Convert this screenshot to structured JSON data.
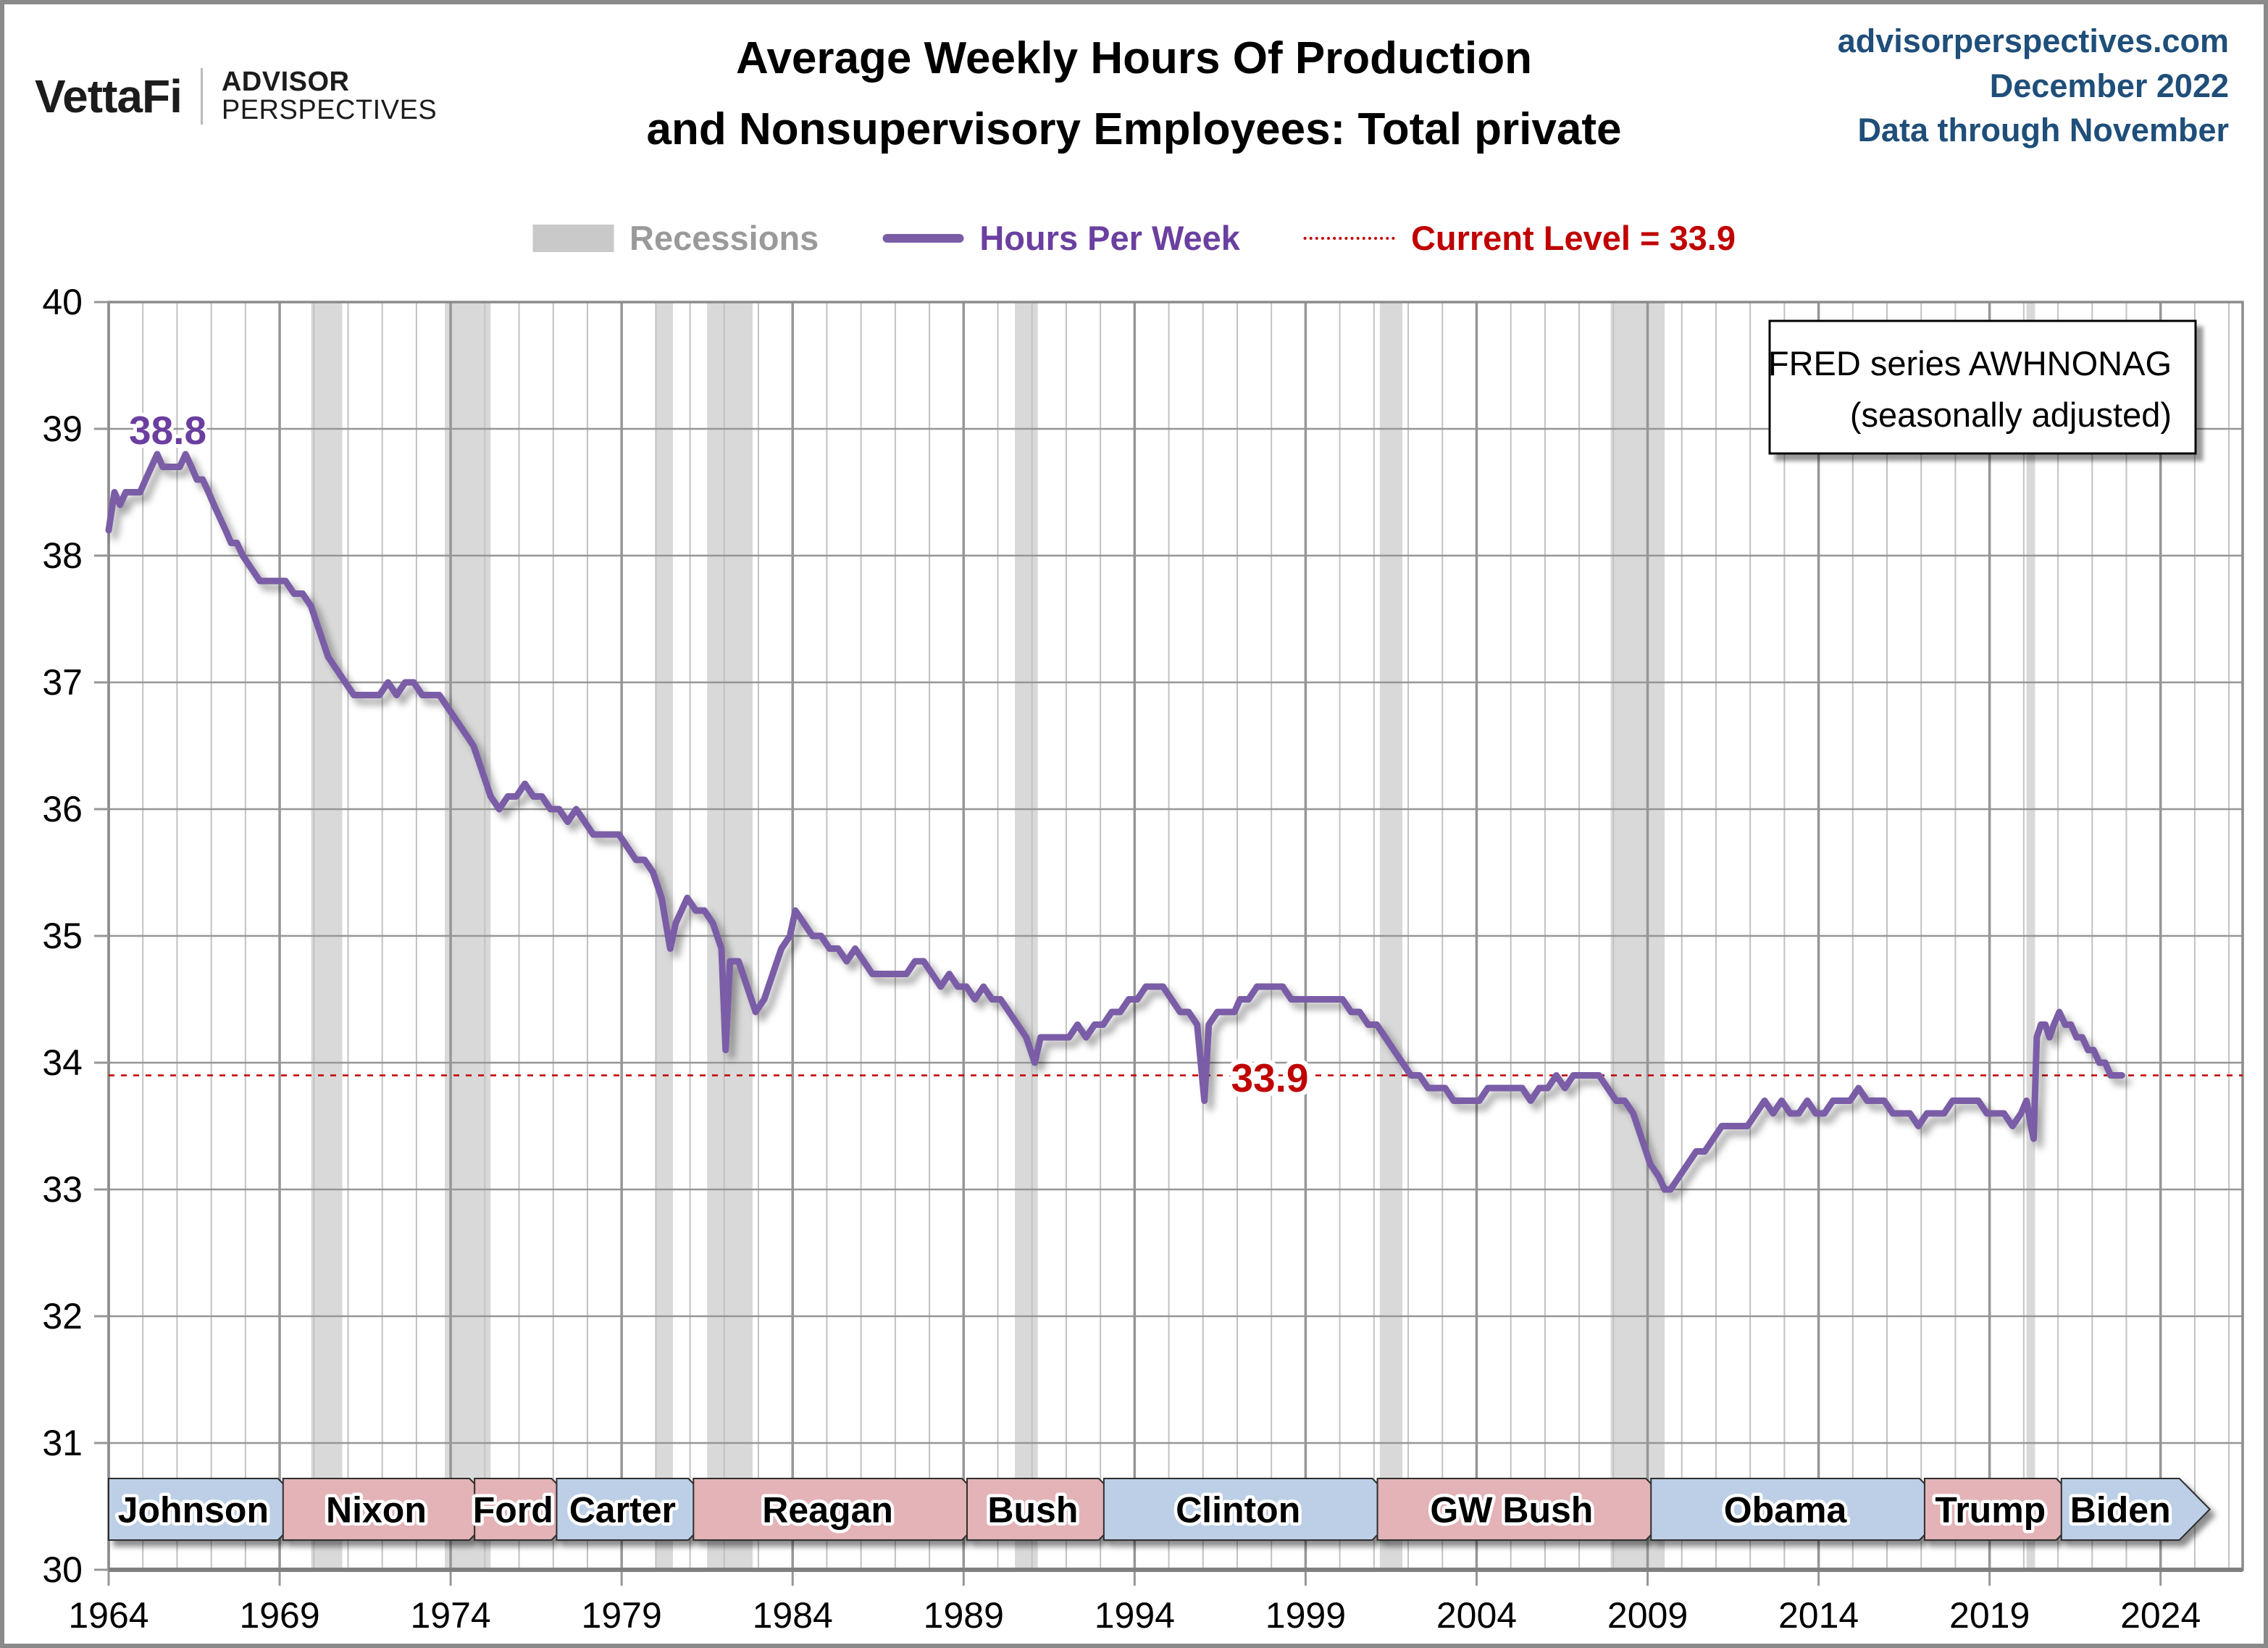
{
  "header": {
    "brand": {
      "name": "VettaFi",
      "sub_top": "ADVISOR",
      "sub_bottom": "PERSPECTIVES"
    },
    "title_line1": "Average Weekly Hours Of Production",
    "title_line2": "and Nonsupervisory Employees: Total private",
    "source_site": "advisorperspectives.com",
    "source_date": "December 2022",
    "source_note": "Data through November"
  },
  "legend": {
    "recessions": "Recessions",
    "series": "Hours Per Week",
    "current": "Current Level = 33.9"
  },
  "annotations": {
    "peak_label": "38.8",
    "current_label": "33.9",
    "fred_line1": "FRED series AWHNONAG",
    "fred_line2": "(seasonally adjusted)"
  },
  "colors": {
    "line": "#7a5da6",
    "purple_text": "#6b3fa0",
    "red": "#c00000",
    "recession": "#d9d9d9",
    "grid_minor": "#c2c2c2",
    "grid_major": "#969696",
    "border": "#8c8c8c",
    "axis": "#7f7f7f",
    "dem": "#bccfe6",
    "rep": "#e3b3b7",
    "banner_border": "#2f2f2f",
    "header_blue": "#1f4e79"
  },
  "chart_data": {
    "type": "line",
    "title": "Average Weekly Hours Of Production and Nonsupervisory Employees: Total private",
    "xlabel": "",
    "ylabel": "Hours Per Week",
    "x_range": [
      1964,
      2026.4
    ],
    "y_range": [
      30,
      40
    ],
    "x_ticks": [
      1964,
      1969,
      1974,
      1979,
      1984,
      1989,
      1994,
      1999,
      2004,
      2009,
      2014,
      2019,
      2024
    ],
    "y_ticks": [
      30,
      31,
      32,
      33,
      34,
      35,
      36,
      37,
      38,
      39,
      40
    ],
    "grid": true,
    "legend_position": "top",
    "current_level": 33.9,
    "peak_annotation": {
      "x": 1965.4,
      "value": 38.8
    },
    "current_annotation_x": 1997.9,
    "recessions": [
      [
        1969.92,
        1970.83
      ],
      [
        1973.83,
        1975.17
      ],
      [
        1980.0,
        1980.5
      ],
      [
        1981.5,
        1982.83
      ],
      [
        1990.5,
        1991.17
      ],
      [
        2001.17,
        2001.83
      ],
      [
        2007.92,
        2009.5
      ],
      [
        2020.08,
        2020.33
      ]
    ],
    "presidents": [
      {
        "name": "Johnson",
        "party": "D",
        "start": 1964.0,
        "end": 1968.95
      },
      {
        "name": "Nixon",
        "party": "R",
        "start": 1969.1,
        "end": 1974.55
      },
      {
        "name": "Ford",
        "party": "R",
        "start": 1974.7,
        "end": 1976.95
      },
      {
        "name": "Carter",
        "party": "D",
        "start": 1977.1,
        "end": 1980.95
      },
      {
        "name": "Reagan",
        "party": "R",
        "start": 1981.1,
        "end": 1988.95
      },
      {
        "name": "Bush",
        "party": "R",
        "start": 1989.1,
        "end": 1992.95
      },
      {
        "name": "Clinton",
        "party": "D",
        "start": 1993.1,
        "end": 2000.95
      },
      {
        "name": "GW Bush",
        "party": "R",
        "start": 2001.1,
        "end": 2008.95
      },
      {
        "name": "Obama",
        "party": "D",
        "start": 2009.1,
        "end": 2016.95
      },
      {
        "name": "Trump",
        "party": "R",
        "start": 2017.1,
        "end": 2020.95
      },
      {
        "name": "Biden",
        "party": "D",
        "start": 2021.1,
        "end": 2024.55
      }
    ],
    "series": [
      {
        "name": "Hours Per Week",
        "points": [
          [
            1964.0,
            38.2
          ],
          [
            1964.17,
            38.5
          ],
          [
            1964.33,
            38.4
          ],
          [
            1964.5,
            38.5
          ],
          [
            1964.75,
            38.5
          ],
          [
            1964.92,
            38.5
          ],
          [
            1965.08,
            38.6
          ],
          [
            1965.25,
            38.7
          ],
          [
            1965.42,
            38.8
          ],
          [
            1965.58,
            38.7
          ],
          [
            1965.75,
            38.7
          ],
          [
            1965.92,
            38.7
          ],
          [
            1966.08,
            38.7
          ],
          [
            1966.25,
            38.8
          ],
          [
            1966.42,
            38.7
          ],
          [
            1966.58,
            38.6
          ],
          [
            1966.75,
            38.6
          ],
          [
            1966.92,
            38.5
          ],
          [
            1967.08,
            38.4
          ],
          [
            1967.25,
            38.3
          ],
          [
            1967.42,
            38.2
          ],
          [
            1967.58,
            38.1
          ],
          [
            1967.75,
            38.1
          ],
          [
            1967.92,
            38.0
          ],
          [
            1968.17,
            37.9
          ],
          [
            1968.42,
            37.8
          ],
          [
            1968.67,
            37.8
          ],
          [
            1968.92,
            37.8
          ],
          [
            1969.17,
            37.8
          ],
          [
            1969.42,
            37.7
          ],
          [
            1969.67,
            37.7
          ],
          [
            1969.92,
            37.6
          ],
          [
            1970.17,
            37.4
          ],
          [
            1970.42,
            37.2
          ],
          [
            1970.67,
            37.1
          ],
          [
            1970.92,
            37.0
          ],
          [
            1971.17,
            36.9
          ],
          [
            1971.42,
            36.9
          ],
          [
            1971.67,
            36.9
          ],
          [
            1971.92,
            36.9
          ],
          [
            1972.17,
            37.0
          ],
          [
            1972.42,
            36.9
          ],
          [
            1972.67,
            37.0
          ],
          [
            1972.92,
            37.0
          ],
          [
            1973.17,
            36.9
          ],
          [
            1973.42,
            36.9
          ],
          [
            1973.67,
            36.9
          ],
          [
            1973.92,
            36.8
          ],
          [
            1974.17,
            36.7
          ],
          [
            1974.42,
            36.6
          ],
          [
            1974.67,
            36.5
          ],
          [
            1974.92,
            36.3
          ],
          [
            1975.17,
            36.1
          ],
          [
            1975.42,
            36.0
          ],
          [
            1975.67,
            36.1
          ],
          [
            1975.92,
            36.1
          ],
          [
            1976.17,
            36.2
          ],
          [
            1976.42,
            36.1
          ],
          [
            1976.67,
            36.1
          ],
          [
            1976.92,
            36.0
          ],
          [
            1977.17,
            36.0
          ],
          [
            1977.42,
            35.9
          ],
          [
            1977.67,
            36.0
          ],
          [
            1977.92,
            35.9
          ],
          [
            1978.17,
            35.8
          ],
          [
            1978.42,
            35.8
          ],
          [
            1978.67,
            35.8
          ],
          [
            1978.92,
            35.8
          ],
          [
            1979.17,
            35.7
          ],
          [
            1979.42,
            35.6
          ],
          [
            1979.67,
            35.6
          ],
          [
            1979.92,
            35.5
          ],
          [
            1980.17,
            35.3
          ],
          [
            1980.42,
            34.9
          ],
          [
            1980.58,
            35.1
          ],
          [
            1980.75,
            35.2
          ],
          [
            1980.92,
            35.3
          ],
          [
            1981.17,
            35.2
          ],
          [
            1981.42,
            35.2
          ],
          [
            1981.67,
            35.1
          ],
          [
            1981.92,
            34.9
          ],
          [
            1982.04,
            34.1
          ],
          [
            1982.17,
            34.8
          ],
          [
            1982.42,
            34.8
          ],
          [
            1982.67,
            34.6
          ],
          [
            1982.92,
            34.4
          ],
          [
            1983.17,
            34.5
          ],
          [
            1983.42,
            34.7
          ],
          [
            1983.67,
            34.9
          ],
          [
            1983.92,
            35.0
          ],
          [
            1984.08,
            35.2
          ],
          [
            1984.33,
            35.1
          ],
          [
            1984.58,
            35.0
          ],
          [
            1984.83,
            35.0
          ],
          [
            1985.08,
            34.9
          ],
          [
            1985.33,
            34.9
          ],
          [
            1985.58,
            34.8
          ],
          [
            1985.83,
            34.9
          ],
          [
            1986.08,
            34.8
          ],
          [
            1986.33,
            34.7
          ],
          [
            1986.58,
            34.7
          ],
          [
            1986.83,
            34.7
          ],
          [
            1987.08,
            34.7
          ],
          [
            1987.33,
            34.7
          ],
          [
            1987.58,
            34.8
          ],
          [
            1987.83,
            34.8
          ],
          [
            1988.08,
            34.7
          ],
          [
            1988.33,
            34.6
          ],
          [
            1988.58,
            34.7
          ],
          [
            1988.83,
            34.6
          ],
          [
            1989.08,
            34.6
          ],
          [
            1989.33,
            34.5
          ],
          [
            1989.58,
            34.6
          ],
          [
            1989.83,
            34.5
          ],
          [
            1990.08,
            34.5
          ],
          [
            1990.33,
            34.4
          ],
          [
            1990.58,
            34.3
          ],
          [
            1990.83,
            34.2
          ],
          [
            1991.08,
            34.0
          ],
          [
            1991.25,
            34.2
          ],
          [
            1991.58,
            34.2
          ],
          [
            1991.83,
            34.2
          ],
          [
            1992.08,
            34.2
          ],
          [
            1992.33,
            34.3
          ],
          [
            1992.58,
            34.2
          ],
          [
            1992.83,
            34.3
          ],
          [
            1993.08,
            34.3
          ],
          [
            1993.33,
            34.4
          ],
          [
            1993.58,
            34.4
          ],
          [
            1993.83,
            34.5
          ],
          [
            1994.08,
            34.5
          ],
          [
            1994.33,
            34.6
          ],
          [
            1994.58,
            34.6
          ],
          [
            1994.83,
            34.6
          ],
          [
            1995.08,
            34.5
          ],
          [
            1995.33,
            34.4
          ],
          [
            1995.58,
            34.4
          ],
          [
            1995.83,
            34.3
          ],
          [
            1996.04,
            33.7
          ],
          [
            1996.17,
            34.3
          ],
          [
            1996.42,
            34.4
          ],
          [
            1996.67,
            34.4
          ],
          [
            1996.92,
            34.4
          ],
          [
            1997.08,
            34.5
          ],
          [
            1997.33,
            34.5
          ],
          [
            1997.58,
            34.6
          ],
          [
            1997.83,
            34.6
          ],
          [
            1998.08,
            34.6
          ],
          [
            1998.33,
            34.6
          ],
          [
            1998.58,
            34.5
          ],
          [
            1998.83,
            34.5
          ],
          [
            1999.08,
            34.5
          ],
          [
            1999.33,
            34.5
          ],
          [
            1999.58,
            34.5
          ],
          [
            1999.83,
            34.5
          ],
          [
            2000.08,
            34.5
          ],
          [
            2000.33,
            34.4
          ],
          [
            2000.58,
            34.4
          ],
          [
            2000.83,
            34.3
          ],
          [
            2001.08,
            34.3
          ],
          [
            2001.33,
            34.2
          ],
          [
            2001.58,
            34.1
          ],
          [
            2001.83,
            34.0
          ],
          [
            2002.08,
            33.9
          ],
          [
            2002.33,
            33.9
          ],
          [
            2002.58,
            33.8
          ],
          [
            2002.83,
            33.8
          ],
          [
            2003.08,
            33.8
          ],
          [
            2003.33,
            33.7
          ],
          [
            2003.58,
            33.7
          ],
          [
            2003.83,
            33.7
          ],
          [
            2004.08,
            33.7
          ],
          [
            2004.33,
            33.8
          ],
          [
            2004.58,
            33.8
          ],
          [
            2004.83,
            33.8
          ],
          [
            2005.08,
            33.8
          ],
          [
            2005.33,
            33.8
          ],
          [
            2005.58,
            33.7
          ],
          [
            2005.83,
            33.8
          ],
          [
            2006.08,
            33.8
          ],
          [
            2006.33,
            33.9
          ],
          [
            2006.58,
            33.8
          ],
          [
            2006.83,
            33.9
          ],
          [
            2007.08,
            33.9
          ],
          [
            2007.33,
            33.9
          ],
          [
            2007.58,
            33.9
          ],
          [
            2007.83,
            33.8
          ],
          [
            2008.08,
            33.7
          ],
          [
            2008.33,
            33.7
          ],
          [
            2008.58,
            33.6
          ],
          [
            2008.83,
            33.4
          ],
          [
            2009.08,
            33.2
          ],
          [
            2009.33,
            33.1
          ],
          [
            2009.5,
            33.0
          ],
          [
            2009.67,
            33.0
          ],
          [
            2009.92,
            33.1
          ],
          [
            2010.17,
            33.2
          ],
          [
            2010.42,
            33.3
          ],
          [
            2010.67,
            33.3
          ],
          [
            2010.92,
            33.4
          ],
          [
            2011.17,
            33.5
          ],
          [
            2011.42,
            33.5
          ],
          [
            2011.67,
            33.5
          ],
          [
            2011.92,
            33.5
          ],
          [
            2012.17,
            33.6
          ],
          [
            2012.42,
            33.7
          ],
          [
            2012.67,
            33.6
          ],
          [
            2012.92,
            33.7
          ],
          [
            2013.17,
            33.6
          ],
          [
            2013.42,
            33.6
          ],
          [
            2013.67,
            33.7
          ],
          [
            2013.92,
            33.6
          ],
          [
            2014.17,
            33.6
          ],
          [
            2014.42,
            33.7
          ],
          [
            2014.67,
            33.7
          ],
          [
            2014.92,
            33.7
          ],
          [
            2015.17,
            33.8
          ],
          [
            2015.42,
            33.7
          ],
          [
            2015.67,
            33.7
          ],
          [
            2015.92,
            33.7
          ],
          [
            2016.17,
            33.6
          ],
          [
            2016.42,
            33.6
          ],
          [
            2016.67,
            33.6
          ],
          [
            2016.92,
            33.5
          ],
          [
            2017.17,
            33.6
          ],
          [
            2017.42,
            33.6
          ],
          [
            2017.67,
            33.6
          ],
          [
            2017.92,
            33.7
          ],
          [
            2018.17,
            33.7
          ],
          [
            2018.42,
            33.7
          ],
          [
            2018.67,
            33.7
          ],
          [
            2018.92,
            33.6
          ],
          [
            2019.17,
            33.6
          ],
          [
            2019.42,
            33.6
          ],
          [
            2019.67,
            33.5
          ],
          [
            2019.92,
            33.6
          ],
          [
            2020.08,
            33.7
          ],
          [
            2020.21,
            33.5
          ],
          [
            2020.29,
            33.4
          ],
          [
            2020.38,
            34.2
          ],
          [
            2020.5,
            34.3
          ],
          [
            2020.63,
            34.3
          ],
          [
            2020.75,
            34.2
          ],
          [
            2020.88,
            34.3
          ],
          [
            2021.04,
            34.4
          ],
          [
            2021.21,
            34.3
          ],
          [
            2021.38,
            34.3
          ],
          [
            2021.54,
            34.2
          ],
          [
            2021.71,
            34.2
          ],
          [
            2021.88,
            34.1
          ],
          [
            2022.04,
            34.1
          ],
          [
            2022.21,
            34.0
          ],
          [
            2022.38,
            34.0
          ],
          [
            2022.54,
            33.9
          ],
          [
            2022.71,
            33.9
          ],
          [
            2022.87,
            33.9
          ]
        ]
      }
    ]
  }
}
